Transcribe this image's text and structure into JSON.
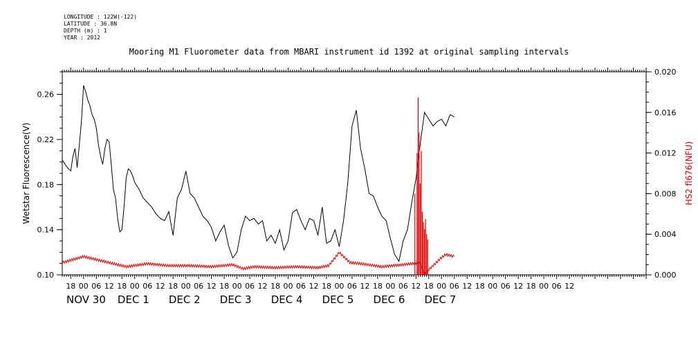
{
  "header": {
    "longitude": "LONGITUDE : 122W(-122)",
    "latitude": "LATITUDE : 36.8N",
    "depth": "DEPTH (m) : 1",
    "year": "YEAR : 2012"
  },
  "chart_data": {
    "type": "line",
    "title": "Mooring M1 Fluorometer data from MBARI instrument id 1392 at original sampling intervals",
    "ylabel_left": "Wetstar Fluorescence(V)",
    "ylabel_right": "HS2 fl676(NFU)",
    "y_left": {
      "min": 0.1,
      "max": 0.28,
      "ticks": [
        "0.10",
        "0.14",
        "0.18",
        "0.22",
        "0.26"
      ],
      "tick_values": [
        0.1,
        0.14,
        0.18,
        0.22,
        0.26
      ]
    },
    "y_right": {
      "min": 0.0,
      "max": 0.02,
      "ticks": [
        "0.000",
        "0.004",
        "0.008",
        "0.012",
        "0.016",
        "0.020"
      ],
      "tick_values": [
        0.0,
        0.004,
        0.008,
        0.012,
        0.016,
        0.02
      ]
    },
    "x_range_hours": [
      -10,
      264
    ],
    "hour_ticks": [
      "18",
      "00",
      "06",
      "12",
      "18",
      "00",
      "06",
      "12",
      "18",
      "00",
      "06",
      "12",
      "18",
      "00",
      "06",
      "12",
      "18",
      "00",
      "06",
      "12",
      "18",
      "00",
      "06",
      "12",
      "18",
      "00",
      "06",
      "12",
      "18",
      "00",
      "06",
      "12"
    ],
    "hour_tick_values": [
      -6,
      0,
      6,
      12,
      18,
      24,
      30,
      36,
      42,
      48,
      54,
      60,
      66,
      72,
      78,
      84,
      90,
      96,
      102,
      108,
      114,
      120,
      126,
      132,
      138,
      144,
      150,
      156,
      162,
      168,
      174,
      180
    ],
    "extra_hour_ticks": [
      "18",
      "00",
      "06",
      "12",
      "18",
      "00",
      "06",
      "12"
    ],
    "extra_hour_tick_values": [
      186,
      192,
      198,
      204,
      210,
      216,
      222,
      228
    ],
    "date_labels": [
      "NOV 30",
      "DEC  1",
      "DEC  2",
      "DEC  3",
      "DEC  4",
      "DEC  5",
      "DEC  6",
      "DEC  7"
    ],
    "date_label_hours": [
      -10,
      14,
      38,
      62,
      86,
      110,
      134,
      158
    ],
    "series": [
      {
        "name": "Wetstar Fluorescence(V)",
        "axis": "left",
        "color": "#000000",
        "x": [
          -10,
          -8,
          -6,
          -5,
          -4,
          -3,
          -2,
          -1,
          0,
          1,
          2,
          3,
          4,
          5,
          6,
          7,
          8,
          9,
          10,
          11,
          12,
          13,
          14,
          15,
          16,
          17,
          18,
          19,
          20,
          21,
          22,
          23,
          24,
          26,
          28,
          30,
          32,
          34,
          36,
          38,
          40,
          42,
          44,
          46,
          48,
          50,
          52,
          54,
          56,
          58,
          60,
          62,
          64,
          66,
          68,
          70,
          72,
          74,
          76,
          78,
          80,
          82,
          84,
          86,
          88,
          90,
          92,
          94,
          96,
          98,
          100,
          102,
          104,
          106,
          108,
          110,
          112,
          114,
          116,
          118,
          120,
          122,
          124,
          126,
          128,
          130,
          132,
          134,
          136,
          138,
          140,
          142,
          144,
          146,
          148,
          150,
          152,
          154,
          156,
          158,
          160,
          162,
          164,
          166,
          168,
          170,
          172,
          174
        ],
        "y": [
          0.202,
          0.196,
          0.192,
          0.205,
          0.212,
          0.195,
          0.215,
          0.236,
          0.268,
          0.262,
          0.255,
          0.25,
          0.242,
          0.238,
          0.23,
          0.215,
          0.205,
          0.198,
          0.212,
          0.22,
          0.218,
          0.198,
          0.176,
          0.168,
          0.15,
          0.138,
          0.14,
          0.16,
          0.186,
          0.194,
          0.192,
          0.188,
          0.182,
          0.176,
          0.168,
          0.164,
          0.16,
          0.154,
          0.15,
          0.148,
          0.156,
          0.135,
          0.168,
          0.176,
          0.192,
          0.172,
          0.168,
          0.16,
          0.152,
          0.148,
          0.142,
          0.13,
          0.138,
          0.144,
          0.126,
          0.115,
          0.12,
          0.14,
          0.152,
          0.148,
          0.15,
          0.145,
          0.148,
          0.13,
          0.135,
          0.128,
          0.14,
          0.122,
          0.13,
          0.155,
          0.158,
          0.148,
          0.14,
          0.15,
          0.148,
          0.135,
          0.16,
          0.128,
          0.13,
          0.14,
          0.125,
          0.148,
          0.182,
          0.232,
          0.246,
          0.212,
          0.194,
          0.172,
          0.17,
          0.16,
          0.152,
          0.148,
          0.132,
          0.118,
          0.112,
          0.13,
          0.14,
          0.164,
          0.185,
          0.216,
          0.244,
          0.238,
          0.232,
          0.236,
          0.238,
          0.232,
          0.242,
          0.24
        ]
      },
      {
        "name": "HS2 fl676(NFU)",
        "axis": "right",
        "color": "#e00000",
        "x": [
          -10,
          0,
          10,
          20,
          30,
          40,
          50,
          60,
          70,
          75,
          80,
          90,
          100,
          110,
          115,
          120,
          125,
          130,
          140,
          150,
          158,
          160,
          162,
          164,
          166,
          168,
          170,
          172,
          174
        ],
        "y": [
          0.0012,
          0.0018,
          0.0013,
          0.0008,
          0.0011,
          0.0009,
          0.0009,
          0.0008,
          0.001,
          0.0006,
          0.0008,
          0.0007,
          0.0008,
          0.0007,
          0.0009,
          0.0022,
          0.0012,
          0.0011,
          0.0008,
          0.001,
          0.0012,
          0.0,
          0.0005,
          0.0009,
          0.0013,
          0.0017,
          0.002,
          0.0019,
          0.0018
        ],
        "spikes_x": [
          155.5,
          156.5,
          157,
          157.5,
          158,
          158.5,
          159,
          159.5,
          160,
          160.5,
          161,
          161.5
        ],
        "spikes_y": [
          0.008,
          0.012,
          0.0175,
          0.014,
          0.009,
          0.0122,
          0.0062,
          0.0052,
          0.0045,
          0.0055,
          0.004,
          0.0035
        ]
      }
    ]
  }
}
